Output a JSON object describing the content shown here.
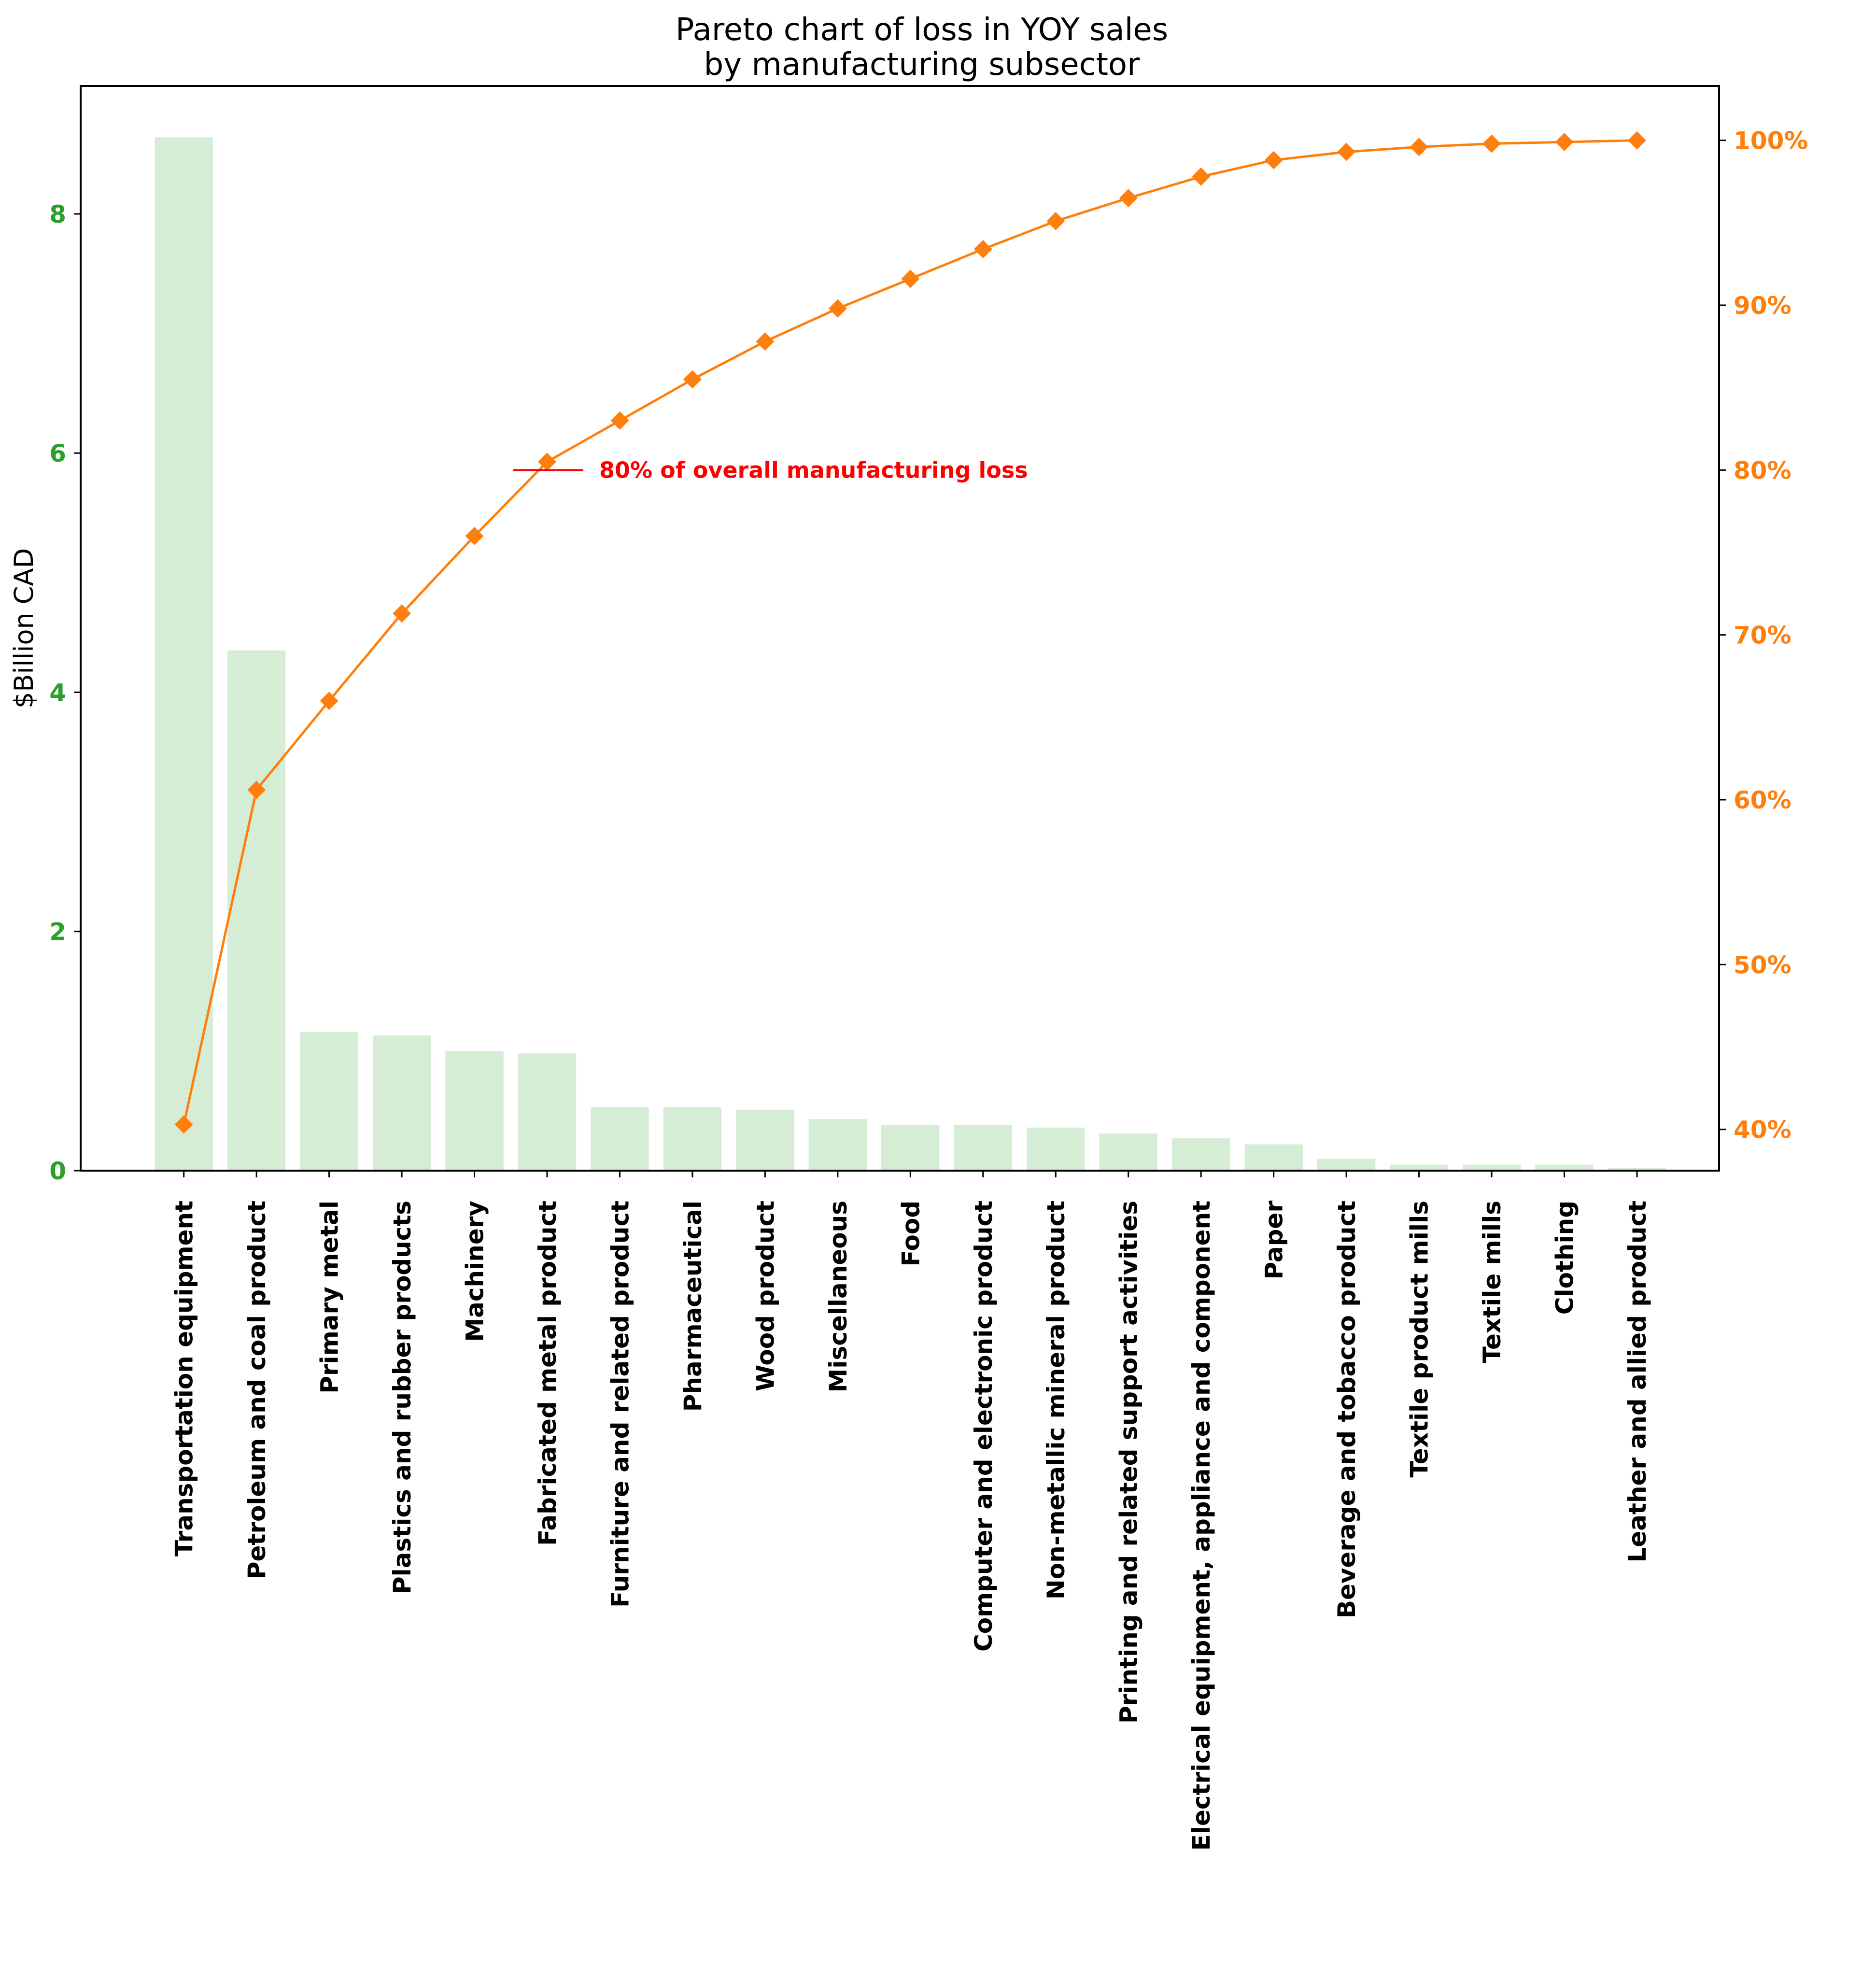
{
  "chart_data": {
    "type": "bar",
    "title": "Pareto chart of loss in YOY sales",
    "subtitle": "by manufacturing subsector",
    "ylabel": "$Billion CAD",
    "ylim": [
      0,
      9.07
    ],
    "y2lim": [
      37.5,
      103.3
    ],
    "yticks": [
      0,
      2,
      4,
      6,
      8
    ],
    "y2ticks": [
      40,
      50,
      60,
      70,
      80,
      90,
      100
    ],
    "y2tick_suffix": "%",
    "grid": false,
    "categories": [
      "Transportation equipment",
      "Petroleum and coal product",
      "Primary metal",
      "Plastics and rubber products",
      "Machinery",
      "Fabricated metal product",
      "Furniture and related product",
      "Pharmaceutical",
      "Wood product",
      "Miscellaneous",
      "Food",
      "Computer and electronic product",
      "Non-metallic mineral product",
      "Printing and related support activities",
      "Electrical equipment, appliance and component",
      "Paper",
      "Beverage and tobacco product",
      "Textile product mills",
      "Textile mills",
      "Clothing",
      "Leather and allied product"
    ],
    "series": [
      {
        "type": "bar",
        "values": [
          8.64,
          4.35,
          1.16,
          1.13,
          1.0,
          0.98,
          0.53,
          0.53,
          0.51,
          0.43,
          0.38,
          0.38,
          0.36,
          0.31,
          0.27,
          0.22,
          0.1,
          0.05,
          0.05,
          0.05,
          0.02
        ]
      },
      {
        "type": "line",
        "axis": "right",
        "marker": "diamond",
        "values": [
          40.3,
          60.6,
          66.0,
          71.3,
          76.0,
          80.5,
          83.0,
          85.5,
          87.8,
          89.8,
          91.6,
          93.4,
          95.1,
          96.5,
          97.8,
          98.8,
          99.3,
          99.6,
          99.8,
          99.9,
          100.0
        ]
      }
    ],
    "annotation": {
      "text": "80% of overall manufacturing loss",
      "value": 80
    },
    "colors": {
      "bar": "#d4edd4",
      "line": "#ff7f0e",
      "left_axis": "#2ca02c",
      "right_axis": "#ff7f0e",
      "annotation": "#ff0000"
    }
  }
}
